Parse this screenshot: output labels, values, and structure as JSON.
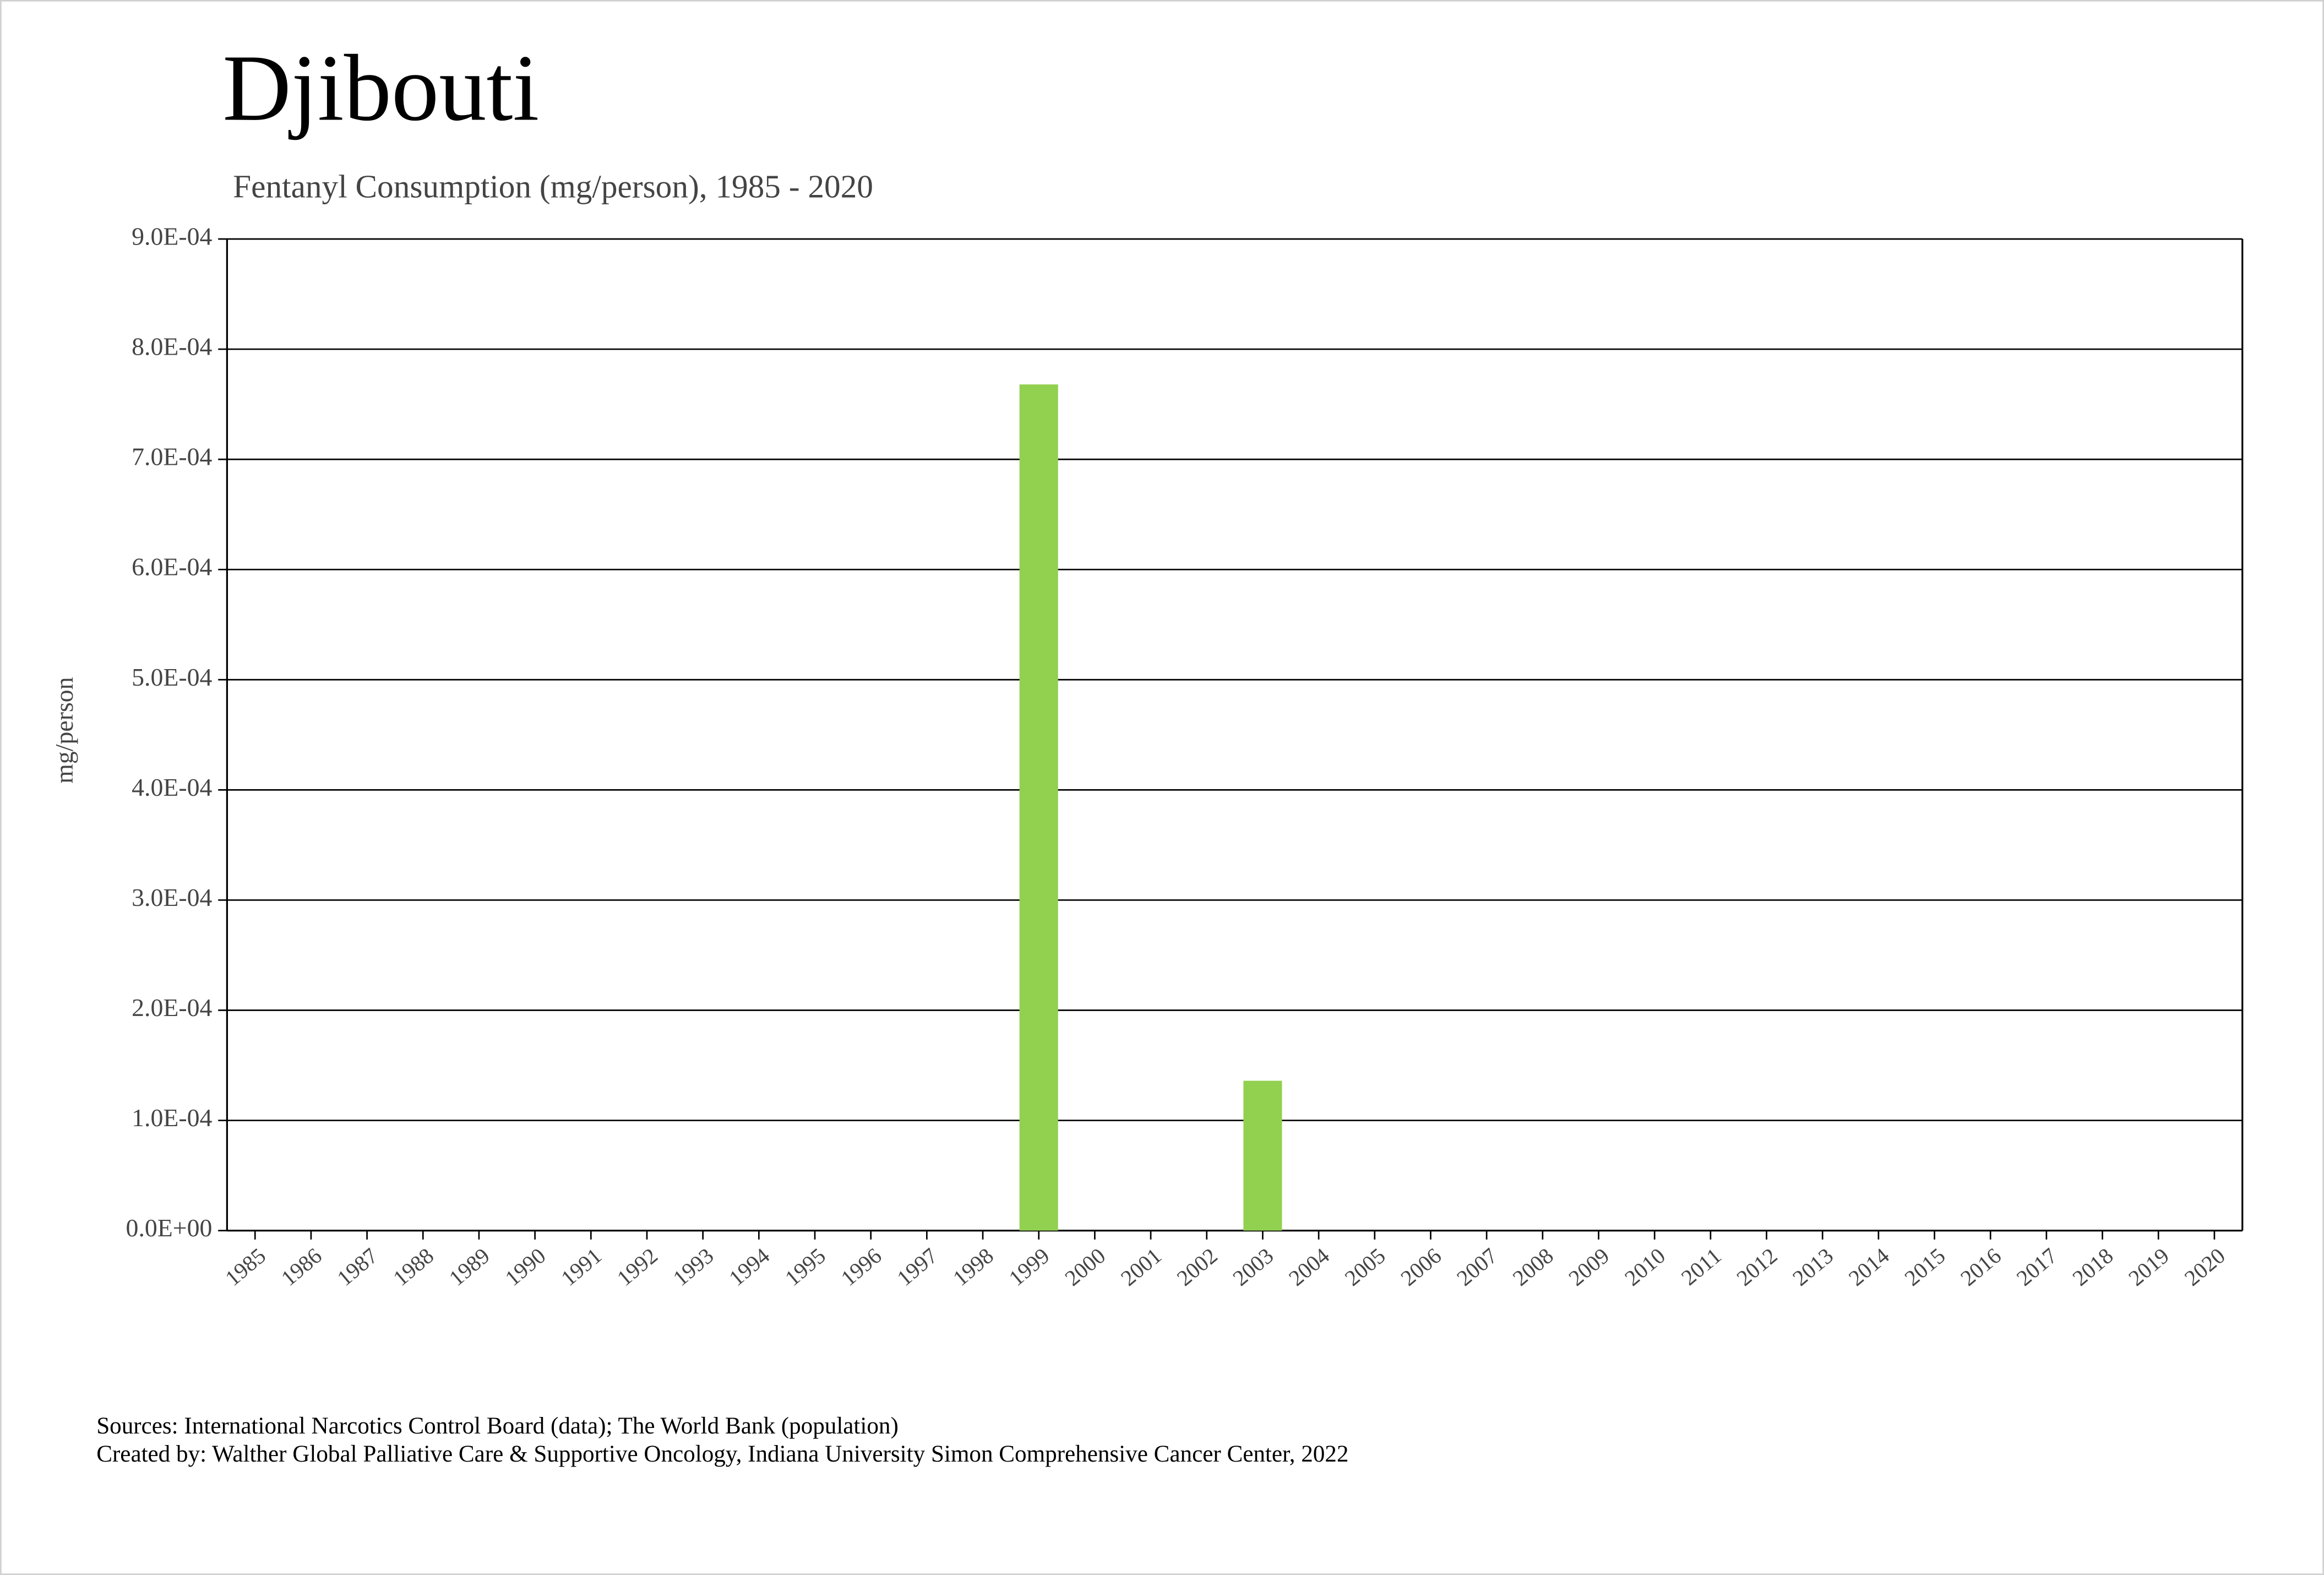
{
  "chart_data": {
    "type": "bar",
    "title": "Djibouti",
    "subtitle": "Fentanyl Consumption (mg/person), 1985 - 2020",
    "y_label": "mg/person",
    "categories": [
      "1985",
      "1986",
      "1987",
      "1988",
      "1989",
      "1990",
      "1991",
      "1992",
      "1993",
      "1994",
      "1995",
      "1996",
      "1997",
      "1998",
      "1999",
      "2000",
      "2001",
      "2002",
      "2003",
      "2004",
      "2005",
      "2006",
      "2007",
      "2008",
      "2009",
      "2010",
      "2011",
      "2012",
      "2013",
      "2014",
      "2015",
      "2016",
      "2017",
      "2018",
      "2019",
      "2020"
    ],
    "values": [
      0,
      0,
      0,
      0,
      0,
      0,
      0,
      0,
      0,
      0,
      0,
      0,
      0,
      0,
      0.000768,
      0,
      0,
      0,
      0.000136,
      0,
      0,
      0,
      0,
      0,
      0,
      0,
      0,
      0,
      0,
      0,
      0,
      0,
      0,
      0,
      0,
      0
    ],
    "color": "#92d050",
    "ylim": [
      0,
      0.0009
    ],
    "yticks": [
      {
        "value": 0,
        "label": "0.0E+00"
      },
      {
        "value": 0.0001,
        "label": "1.0E-04"
      },
      {
        "value": 0.0002,
        "label": "2.0E-04"
      },
      {
        "value": 0.0003,
        "label": "3.0E-04"
      },
      {
        "value": 0.0004,
        "label": "4.0E-04"
      },
      {
        "value": 0.0005,
        "label": "5.0E-04"
      },
      {
        "value": 0.0006,
        "label": "6.0E-04"
      },
      {
        "value": 0.0007,
        "label": "7.0E-04"
      },
      {
        "value": 0.0008,
        "label": "8.0E-04"
      },
      {
        "value": 0.0009,
        "label": "9.0E-04"
      }
    ],
    "grid": true,
    "sources": [
      "Sources: International Narcotics Control Board (data); The World Bank (population)",
      "Created by: Walther Global Palliative Care & Supportive Oncology, Indiana University Simon Comprehensive Cancer Center, 2022"
    ]
  }
}
